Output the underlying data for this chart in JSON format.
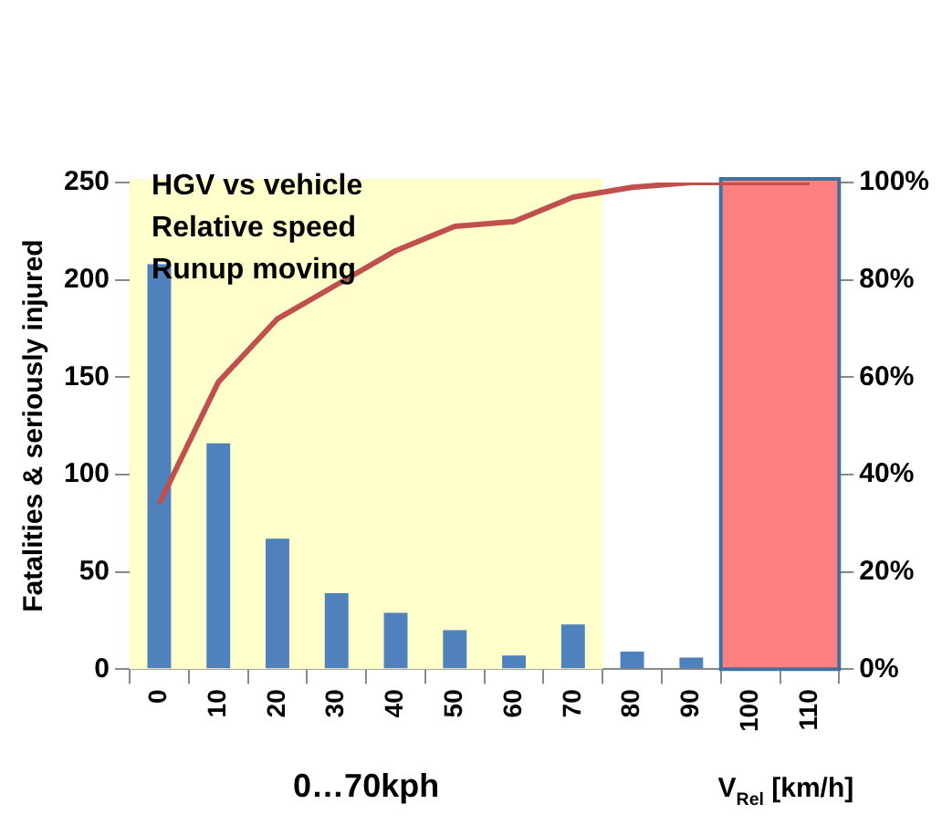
{
  "chart_data": {
    "type": "bar",
    "ylabel": "Fatalities & seriously injured",
    "xlabel": "V$_{Rel}$ [km/h]",
    "categories": [
      "0",
      "10",
      "20",
      "30",
      "40",
      "50",
      "60",
      "70",
      "80",
      "90",
      "100",
      "110"
    ],
    "series": [
      {
        "color": "#4f81bd",
        "values": [
          208,
          116,
          67,
          39,
          29,
          20,
          7,
          23,
          9,
          6,
          null,
          null
        ]
      },
      {
        "type": "line",
        "axis": "y2",
        "color": "#c0504d",
        "values": [
          34,
          59,
          72,
          79,
          86,
          91,
          92,
          97,
          99,
          100,
          100,
          100
        ]
      }
    ],
    "ylim": [
      0,
      250
    ],
    "yticks": [
      0,
      50,
      100,
      150,
      200,
      250
    ],
    "y2lim": [
      0,
      100
    ],
    "y2ticks": [
      {
        "value": 0,
        "label": "0%"
      },
      {
        "value": 20,
        "label": "20%"
      },
      {
        "value": 40,
        "label": "40%"
      },
      {
        "value": 60,
        "label": "60%"
      },
      {
        "value": 80,
        "label": "80%"
      },
      {
        "value": 100,
        "label": "100%"
      }
    ],
    "bands": [
      {
        "axis": "x",
        "from": "0",
        "to": "70",
        "label": "0…70kph",
        "color": "#ffffcc"
      },
      {
        "axis": "x",
        "from": "100",
        "to": "110",
        "label": null,
        "color": "#ff8080"
      }
    ],
    "annotations": [
      "HGV vs vehicle",
      "Relative speed",
      "Runup moving"
    ],
    "grid": false,
    "legend": false,
    "marker": "none"
  }
}
